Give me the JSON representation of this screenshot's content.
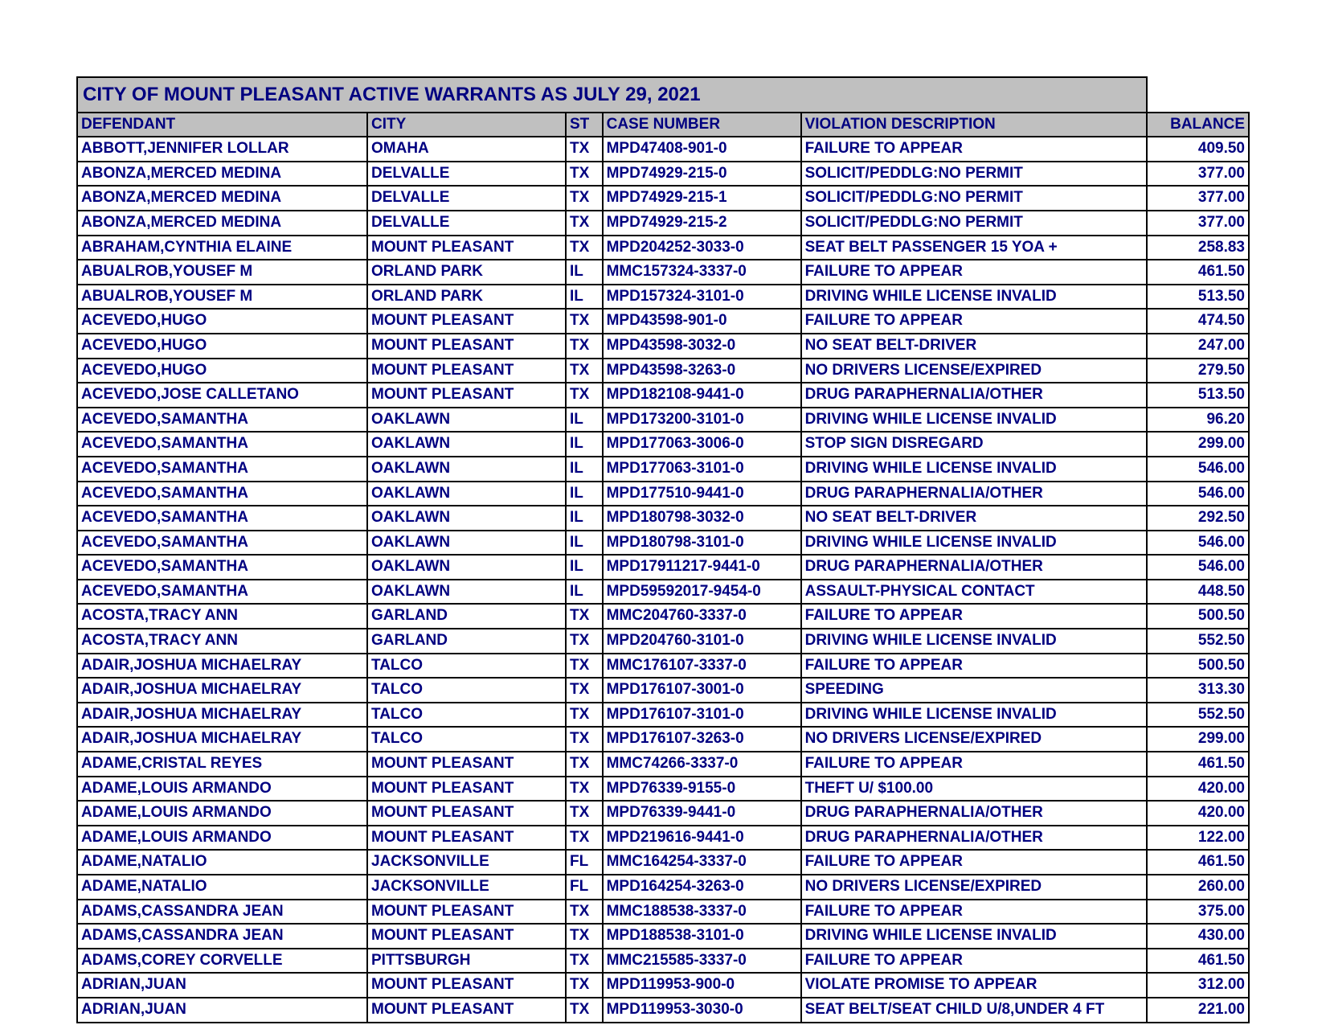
{
  "title": "CITY OF MOUNT PLEASANT  ACTIVE WARRANTS AS JULY 29, 2021",
  "columns": [
    "DEFENDANT",
    "CITY",
    "ST",
    "CASE NUMBER",
    "VIOLATION DESCRIPTION",
    "BALANCE"
  ],
  "rows": [
    {
      "defendant": "ABBOTT,JENNIFER LOLLAR",
      "city": "OMAHA",
      "st": "TX",
      "case": "MPD47408-901-0",
      "violation": "FAILURE TO APPEAR",
      "balance": "409.50"
    },
    {
      "defendant": "ABONZA,MERCED MEDINA",
      "city": "DELVALLE",
      "st": "TX",
      "case": "MPD74929-215-0",
      "violation": "SOLICIT/PEDDLG:NO PERMIT",
      "balance": "377.00"
    },
    {
      "defendant": "ABONZA,MERCED MEDINA",
      "city": "DELVALLE",
      "st": "TX",
      "case": "MPD74929-215-1",
      "violation": "SOLICIT/PEDDLG:NO PERMIT",
      "balance": "377.00"
    },
    {
      "defendant": "ABONZA,MERCED MEDINA",
      "city": "DELVALLE",
      "st": "TX",
      "case": "MPD74929-215-2",
      "violation": "SOLICIT/PEDDLG:NO PERMIT",
      "balance": "377.00"
    },
    {
      "defendant": "ABRAHAM,CYNTHIA ELAINE",
      "city": "MOUNT PLEASANT",
      "st": "TX",
      "case": "MPD204252-3033-0",
      "violation": "SEAT BELT PASSENGER 15 YOA +",
      "balance": "258.83"
    },
    {
      "defendant": "ABUALROB,YOUSEF M",
      "city": "ORLAND PARK",
      "st": "IL",
      "case": "MMC157324-3337-0",
      "violation": "FAILURE TO APPEAR",
      "balance": "461.50"
    },
    {
      "defendant": "ABUALROB,YOUSEF M",
      "city": "ORLAND PARK",
      "st": "IL",
      "case": "MPD157324-3101-0",
      "violation": "DRIVING WHILE LICENSE INVALID",
      "balance": "513.50"
    },
    {
      "defendant": "ACEVEDO,HUGO",
      "city": "MOUNT PLEASANT",
      "st": "TX",
      "case": "MPD43598-901-0",
      "violation": "FAILURE TO APPEAR",
      "balance": "474.50"
    },
    {
      "defendant": "ACEVEDO,HUGO",
      "city": "MOUNT PLEASANT",
      "st": "TX",
      "case": "MPD43598-3032-0",
      "violation": "NO SEAT BELT-DRIVER",
      "balance": "247.00"
    },
    {
      "defendant": "ACEVEDO,HUGO",
      "city": "MOUNT PLEASANT",
      "st": "TX",
      "case": "MPD43598-3263-0",
      "violation": "NO DRIVERS LICENSE/EXPIRED",
      "balance": "279.50"
    },
    {
      "defendant": "ACEVEDO,JOSE CALLETANO",
      "city": "MOUNT PLEASANT",
      "st": "TX",
      "case": "MPD182108-9441-0",
      "violation": "DRUG PARAPHERNALIA/OTHER",
      "balance": "513.50"
    },
    {
      "defendant": "ACEVEDO,SAMANTHA",
      "city": "OAKLAWN",
      "st": "IL",
      "case": "MPD173200-3101-0",
      "violation": "DRIVING WHILE LICENSE INVALID",
      "balance": "96.20"
    },
    {
      "defendant": "ACEVEDO,SAMANTHA",
      "city": "OAKLAWN",
      "st": "IL",
      "case": "MPD177063-3006-0",
      "violation": "STOP SIGN DISREGARD",
      "balance": "299.00"
    },
    {
      "defendant": "ACEVEDO,SAMANTHA",
      "city": "OAKLAWN",
      "st": "IL",
      "case": "MPD177063-3101-0",
      "violation": "DRIVING WHILE LICENSE INVALID",
      "balance": "546.00"
    },
    {
      "defendant": "ACEVEDO,SAMANTHA",
      "city": "OAKLAWN",
      "st": "IL",
      "case": "MPD177510-9441-0",
      "violation": "DRUG PARAPHERNALIA/OTHER",
      "balance": "546.00"
    },
    {
      "defendant": "ACEVEDO,SAMANTHA",
      "city": "OAKLAWN",
      "st": "IL",
      "case": "MPD180798-3032-0",
      "violation": "NO SEAT BELT-DRIVER",
      "balance": "292.50"
    },
    {
      "defendant": "ACEVEDO,SAMANTHA",
      "city": "OAKLAWN",
      "st": "IL",
      "case": "MPD180798-3101-0",
      "violation": "DRIVING WHILE LICENSE INVALID",
      "balance": "546.00"
    },
    {
      "defendant": "ACEVEDO,SAMANTHA",
      "city": "OAKLAWN",
      "st": "IL",
      "case": "MPD17911217-9441-0",
      "violation": "DRUG PARAPHERNALIA/OTHER",
      "balance": "546.00"
    },
    {
      "defendant": "ACEVEDO,SAMANTHA",
      "city": "OAKLAWN",
      "st": "IL",
      "case": "MPD59592017-9454-0",
      "violation": "ASSAULT-PHYSICAL CONTACT",
      "balance": "448.50"
    },
    {
      "defendant": "ACOSTA,TRACY ANN",
      "city": "GARLAND",
      "st": "TX",
      "case": "MMC204760-3337-0",
      "violation": "FAILURE TO APPEAR",
      "balance": "500.50"
    },
    {
      "defendant": "ACOSTA,TRACY ANN",
      "city": "GARLAND",
      "st": "TX",
      "case": "MPD204760-3101-0",
      "violation": "DRIVING WHILE LICENSE INVALID",
      "balance": "552.50"
    },
    {
      "defendant": "ADAIR,JOSHUA MICHAELRAY",
      "city": "TALCO",
      "st": "TX",
      "case": "MMC176107-3337-0",
      "violation": "FAILURE TO APPEAR",
      "balance": "500.50"
    },
    {
      "defendant": "ADAIR,JOSHUA MICHAELRAY",
      "city": "TALCO",
      "st": "TX",
      "case": "MPD176107-3001-0",
      "violation": "SPEEDING",
      "balance": "313.30"
    },
    {
      "defendant": "ADAIR,JOSHUA MICHAELRAY",
      "city": "TALCO",
      "st": "TX",
      "case": "MPD176107-3101-0",
      "violation": "DRIVING WHILE LICENSE INVALID",
      "balance": "552.50"
    },
    {
      "defendant": "ADAIR,JOSHUA MICHAELRAY",
      "city": "TALCO",
      "st": "TX",
      "case": "MPD176107-3263-0",
      "violation": "NO DRIVERS LICENSE/EXPIRED",
      "balance": "299.00"
    },
    {
      "defendant": "ADAME,CRISTAL REYES",
      "city": "MOUNT PLEASANT",
      "st": "TX",
      "case": "MMC74266-3337-0",
      "violation": "FAILURE TO APPEAR",
      "balance": "461.50"
    },
    {
      "defendant": "ADAME,LOUIS ARMANDO",
      "city": "MOUNT PLEASANT",
      "st": "TX",
      "case": "MPD76339-9155-0",
      "violation": "THEFT U/ $100.00",
      "balance": "420.00"
    },
    {
      "defendant": "ADAME,LOUIS ARMANDO",
      "city": "MOUNT PLEASANT",
      "st": "TX",
      "case": "MPD76339-9441-0",
      "violation": "DRUG PARAPHERNALIA/OTHER",
      "balance": "420.00"
    },
    {
      "defendant": "ADAME,LOUIS ARMANDO",
      "city": "MOUNT PLEASANT",
      "st": "TX",
      "case": "MPD219616-9441-0",
      "violation": "DRUG PARAPHERNALIA/OTHER",
      "balance": "122.00"
    },
    {
      "defendant": "ADAME,NATALIO",
      "city": "JACKSONVILLE",
      "st": "FL",
      "case": "MMC164254-3337-0",
      "violation": "FAILURE TO APPEAR",
      "balance": "461.50"
    },
    {
      "defendant": "ADAME,NATALIO",
      "city": "JACKSONVILLE",
      "st": "FL",
      "case": "MPD164254-3263-0",
      "violation": "NO DRIVERS LICENSE/EXPIRED",
      "balance": "260.00"
    },
    {
      "defendant": "ADAMS,CASSANDRA JEAN",
      "city": "MOUNT PLEASANT",
      "st": "TX",
      "case": "MMC188538-3337-0",
      "violation": "FAILURE TO APPEAR",
      "balance": "375.00"
    },
    {
      "defendant": "ADAMS,CASSANDRA JEAN",
      "city": "MOUNT PLEASANT",
      "st": "TX",
      "case": "MPD188538-3101-0",
      "violation": "DRIVING WHILE LICENSE INVALID",
      "balance": "430.00"
    },
    {
      "defendant": "ADAMS,COREY CORVELLE",
      "city": "PITTSBURGH",
      "st": "TX",
      "case": "MMC215585-3337-0",
      "violation": "FAILURE TO APPEAR",
      "balance": "461.50"
    },
    {
      "defendant": "ADRIAN,JUAN",
      "city": "MOUNT PLEASANT",
      "st": "TX",
      "case": "MPD119953-900-0",
      "violation": "VIOLATE PROMISE TO APPEAR",
      "balance": "312.00"
    },
    {
      "defendant": "ADRIAN,JUAN",
      "city": "MOUNT PLEASANT",
      "st": "TX",
      "case": "MPD119953-3030-0",
      "violation": "SEAT BELT/SEAT CHILD U/8,UNDER 4 FT",
      "balance": "221.00"
    }
  ],
  "styling": {
    "text_color": "#000080",
    "header_bg": "#c0c0c0",
    "border_color": "#000000",
    "background": "#ffffff",
    "font_family": "Arial",
    "title_fontsize": 24,
    "cell_fontsize": 19,
    "font_weight": "bold"
  }
}
